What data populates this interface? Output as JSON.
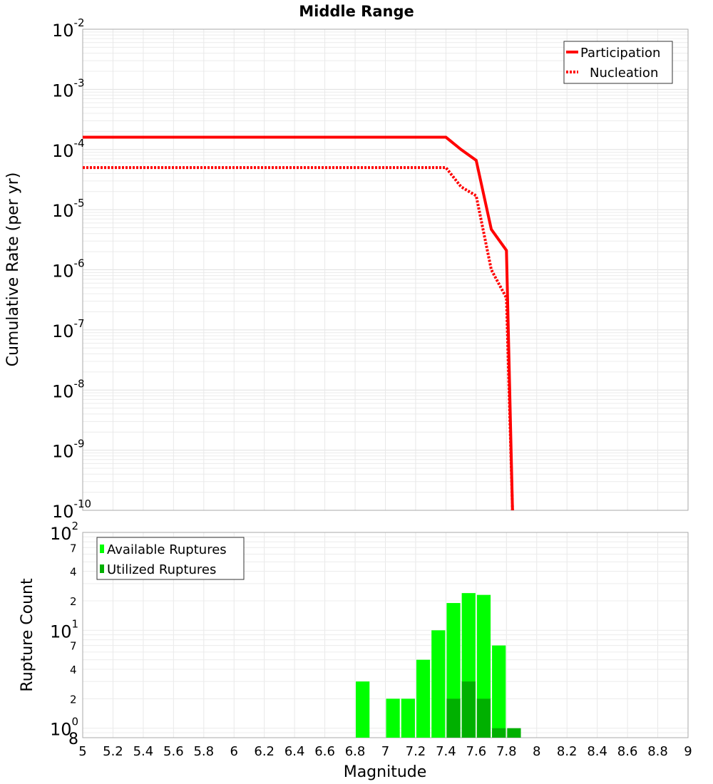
{
  "chart_data": [
    {
      "type": "line",
      "title": "Middle Range",
      "xlabel": "",
      "ylabel": "Cumulative Rate (per yr)",
      "xlim": [
        5,
        9
      ],
      "ylim": [
        1e-10,
        0.01
      ],
      "yscale": "log",
      "ytick_exponents": [
        "-2",
        "-3",
        "-4",
        "-5",
        "-6",
        "-7",
        "-8",
        "-9",
        "-10"
      ],
      "grid": true,
      "legend_placement": "top-right",
      "series": [
        {
          "name": "Participation",
          "style": "solid",
          "color": "#ff0000",
          "x": [
            5.0,
            7.4,
            7.5,
            7.6,
            7.7,
            7.8,
            7.84
          ],
          "y": [
            0.00016,
            0.00016,
            0.0001,
            6.6e-05,
            4.7e-06,
            2.1e-06,
            1e-10
          ]
        },
        {
          "name": "Nucleation",
          "style": "dotted",
          "color": "#ff0000",
          "x": [
            5.0,
            7.4,
            7.5,
            7.6,
            7.7,
            7.8,
            7.84
          ],
          "y": [
            5e-05,
            5e-05,
            2.4e-05,
            1.7e-05,
            1e-06,
            3.4e-07,
            1e-10
          ]
        }
      ]
    },
    {
      "type": "bar",
      "xlabel": "Magnitude",
      "ylabel": "Rupture Count",
      "xlim": [
        5,
        9
      ],
      "ylim": [
        0.8,
        100
      ],
      "yscale": "log",
      "xticks": [
        "5",
        "5.2",
        "5.4",
        "5.6",
        "5.8",
        "6",
        "6.2",
        "6.4",
        "6.6",
        "6.8",
        "7",
        "7.2",
        "7.4",
        "7.6",
        "7.8",
        "8",
        "8.2",
        "8.4",
        "8.6",
        "8.8",
        "9"
      ],
      "ytick_labels": [
        {
          "v": 100,
          "base": "10",
          "exp": "2"
        },
        {
          "v": 70.0,
          "label": "7"
        },
        {
          "v": 40.0,
          "label": "4"
        },
        {
          "v": 20.0,
          "label": "2"
        },
        {
          "v": 10,
          "base": "10",
          "exp": "1"
        },
        {
          "v": 7,
          "label": "7"
        },
        {
          "v": 4,
          "label": "4"
        },
        {
          "v": 2,
          "label": "2"
        },
        {
          "v": 1,
          "base": "10",
          "exp": "0"
        },
        {
          "v": 0.8,
          "label": "8"
        }
      ],
      "grid": true,
      "legend_placement": "top-left",
      "bin_width": 0.1,
      "series": [
        {
          "name": "Available Ruptures",
          "color": "#00ff00",
          "x": [
            6.8,
            7.0,
            7.1,
            7.2,
            7.3,
            7.4,
            7.5,
            7.6,
            7.7
          ],
          "values": [
            3,
            2,
            2,
            5,
            10,
            19,
            24,
            23,
            7
          ]
        },
        {
          "name": "Utilized Ruptures",
          "color": "#00b000",
          "x": [
            7.4,
            7.5,
            7.6,
            7.7,
            7.8
          ],
          "values": [
            2,
            3,
            2,
            1,
            1
          ]
        }
      ]
    }
  ]
}
